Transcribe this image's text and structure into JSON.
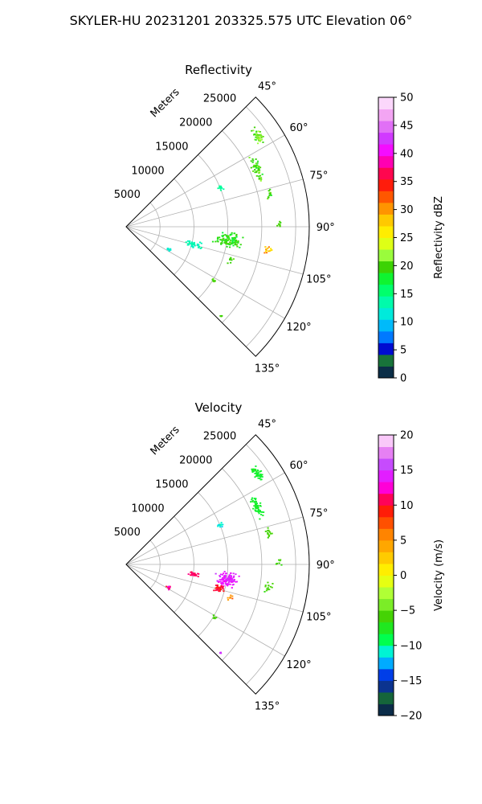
{
  "figure": {
    "title": "SKYLER-HU  20231201  203325.575 UTC Elevation 06°"
  },
  "chart_data": [
    {
      "type": "polar-sector",
      "title": "Reflectivity",
      "radial_axis_label": "Meters",
      "radial_ticks": [
        5000,
        10000,
        15000,
        20000,
        25000
      ],
      "radial_tick_labels": [
        "5000",
        "10000",
        "15000",
        "20000",
        "25000"
      ],
      "rmax_m": 27000,
      "azimuth_range_deg": [
        45,
        135
      ],
      "azimuth_ticks": [
        45,
        60,
        75,
        90,
        105,
        120,
        135
      ],
      "azimuth_tick_labels": [
        "45°",
        "60°",
        "75°",
        "90°",
        "105°",
        "120°",
        "135°"
      ],
      "grid": true,
      "colorbar": {
        "label": "Reflectivity dBZ",
        "range": [
          0,
          50
        ],
        "ticks": [
          0,
          5,
          10,
          15,
          20,
          25,
          30,
          35,
          40,
          45,
          50
        ],
        "tick_labels": [
          "0",
          "5",
          "10",
          "15",
          "20",
          "25",
          "30",
          "35",
          "40",
          "45",
          "50"
        ],
        "stops": [
          {
            "v": 0,
            "c": "#0a1a5a"
          },
          {
            "v": 1.7,
            "c": "#0b3b3b"
          },
          {
            "v": 3.3,
            "c": "#1a7a3a"
          },
          {
            "v": 5,
            "c": "#0000cc"
          },
          {
            "v": 7,
            "c": "#0070ff"
          },
          {
            "v": 9,
            "c": "#00b0ff"
          },
          {
            "v": 11,
            "c": "#00e6e6"
          },
          {
            "v": 14,
            "c": "#00ffa0"
          },
          {
            "v": 17,
            "c": "#00ff40"
          },
          {
            "v": 20,
            "c": "#40d000"
          },
          {
            "v": 22,
            "c": "#a0ff40"
          },
          {
            "v": 25,
            "c": "#ffff00"
          },
          {
            "v": 28,
            "c": "#ffcc00"
          },
          {
            "v": 31,
            "c": "#ff8000"
          },
          {
            "v": 34,
            "c": "#ff2000"
          },
          {
            "v": 37,
            "c": "#ff0060"
          },
          {
            "v": 40,
            "c": "#ff00ff"
          },
          {
            "v": 43,
            "c": "#cc40ff"
          },
          {
            "v": 46,
            "c": "#f090f0"
          },
          {
            "v": 50,
            "c": "#fff0ff"
          }
        ]
      },
      "clusters": [
        {
          "az": 55,
          "r": 23500,
          "da": 4,
          "dr": 900,
          "n": 45,
          "v": 21,
          "spread": 3
        },
        {
          "az": 66,
          "r": 21000,
          "da": 6,
          "dr": 800,
          "n": 55,
          "v": 20,
          "spread": 3
        },
        {
          "az": 67,
          "r": 15000,
          "da": 2,
          "dr": 500,
          "n": 14,
          "v": 14,
          "spread": 1
        },
        {
          "az": 77,
          "r": 21500,
          "da": 3,
          "dr": 600,
          "n": 14,
          "v": 20,
          "spread": 2
        },
        {
          "az": 89,
          "r": 22500,
          "da": 2,
          "dr": 700,
          "n": 8,
          "v": 20,
          "spread": 1
        },
        {
          "az": 98,
          "r": 15000,
          "da": 6,
          "dr": 2500,
          "n": 110,
          "v": 19,
          "spread": 3
        },
        {
          "az": 104,
          "r": 10000,
          "da": 4,
          "dr": 2000,
          "n": 35,
          "v": 13,
          "spread": 2
        },
        {
          "az": 99,
          "r": 21000,
          "da": 3,
          "dr": 800,
          "n": 14,
          "v": 27,
          "spread": 6
        },
        {
          "az": 107,
          "r": 16000,
          "da": 3,
          "dr": 600,
          "n": 8,
          "v": 20,
          "spread": 1
        },
        {
          "az": 121,
          "r": 15000,
          "da": 2,
          "dr": 500,
          "n": 8,
          "v": 20,
          "spread": 1
        },
        {
          "az": 118,
          "r": 7000,
          "da": 3,
          "dr": 500,
          "n": 10,
          "v": 12,
          "spread": 1
        },
        {
          "az": 133,
          "r": 19000,
          "da": 1,
          "dr": 400,
          "n": 5,
          "v": 20,
          "spread": 1
        }
      ]
    },
    {
      "type": "polar-sector",
      "title": "Velocity",
      "radial_axis_label": "Meters",
      "radial_ticks": [
        5000,
        10000,
        15000,
        20000,
        25000
      ],
      "radial_tick_labels": [
        "5000",
        "10000",
        "15000",
        "20000",
        "25000"
      ],
      "rmax_m": 27000,
      "azimuth_range_deg": [
        45,
        135
      ],
      "azimuth_ticks": [
        45,
        60,
        75,
        90,
        105,
        120,
        135
      ],
      "azimuth_tick_labels": [
        "45°",
        "60°",
        "75°",
        "90°",
        "105°",
        "120°",
        "135°"
      ],
      "grid": true,
      "colorbar": {
        "label": "Velocity (m/s)",
        "range": [
          -20,
          20
        ],
        "ticks": [
          -20,
          -15,
          -10,
          -5,
          0,
          5,
          10,
          15,
          20
        ],
        "tick_labels": [
          "−20",
          "−15",
          "−10",
          "−5",
          "0",
          "5",
          "10",
          "15",
          "20"
        ],
        "stops": [
          {
            "v": -20,
            "c": "#0a1a5a"
          },
          {
            "v": -18.5,
            "c": "#0b3b3b"
          },
          {
            "v": -17,
            "c": "#1a7a3a"
          },
          {
            "v": -15,
            "c": "#0000cc"
          },
          {
            "v": -13.5,
            "c": "#0070ff"
          },
          {
            "v": -12,
            "c": "#00c8ff"
          },
          {
            "v": -10.5,
            "c": "#00ffc8"
          },
          {
            "v": -9,
            "c": "#00ff40"
          },
          {
            "v": -6,
            "c": "#40d000"
          },
          {
            "v": -3,
            "c": "#a0ff40"
          },
          {
            "v": 0,
            "c": "#ffff00"
          },
          {
            "v": 3,
            "c": "#ffc000"
          },
          {
            "v": 6,
            "c": "#ff8000"
          },
          {
            "v": 9,
            "c": "#ff2000"
          },
          {
            "v": 11,
            "c": "#ff0060"
          },
          {
            "v": 13,
            "c": "#ff00ff"
          },
          {
            "v": 15.5,
            "c": "#c040ff"
          },
          {
            "v": 18,
            "c": "#f090f0"
          },
          {
            "v": 20,
            "c": "#fff0ff"
          }
        ]
      },
      "clusters": [
        {
          "az": 55,
          "r": 23500,
          "da": 4,
          "dr": 900,
          "n": 45,
          "v": -8,
          "spread": 1
        },
        {
          "az": 66,
          "r": 21000,
          "da": 6,
          "dr": 800,
          "n": 55,
          "v": -8,
          "spread": 1
        },
        {
          "az": 67,
          "r": 15000,
          "da": 2,
          "dr": 500,
          "n": 14,
          "v": -11,
          "spread": 1
        },
        {
          "az": 77,
          "r": 21500,
          "da": 3,
          "dr": 600,
          "n": 14,
          "v": -6,
          "spread": 1
        },
        {
          "az": 89,
          "r": 22500,
          "da": 2,
          "dr": 700,
          "n": 8,
          "v": -6,
          "spread": 1
        },
        {
          "az": 98,
          "r": 15000,
          "da": 5,
          "dr": 2200,
          "n": 110,
          "v": 14,
          "spread": 2
        },
        {
          "az": 104,
          "r": 14000,
          "da": 3,
          "dr": 1000,
          "n": 35,
          "v": 10,
          "spread": 2
        },
        {
          "az": 98,
          "r": 10000,
          "da": 3,
          "dr": 1200,
          "n": 25,
          "v": 11,
          "spread": 1
        },
        {
          "az": 99,
          "r": 21000,
          "da": 3,
          "dr": 800,
          "n": 14,
          "v": -6,
          "spread": 1
        },
        {
          "az": 107,
          "r": 16000,
          "da": 3,
          "dr": 600,
          "n": 8,
          "v": 5,
          "spread": 3
        },
        {
          "az": 121,
          "r": 15000,
          "da": 2,
          "dr": 500,
          "n": 8,
          "v": -6,
          "spread": 1
        },
        {
          "az": 118,
          "r": 7000,
          "da": 3,
          "dr": 500,
          "n": 10,
          "v": 12,
          "spread": 3
        },
        {
          "az": 133,
          "r": 19000,
          "da": 1,
          "dr": 400,
          "n": 5,
          "v": 15,
          "spread": 1
        }
      ]
    }
  ]
}
